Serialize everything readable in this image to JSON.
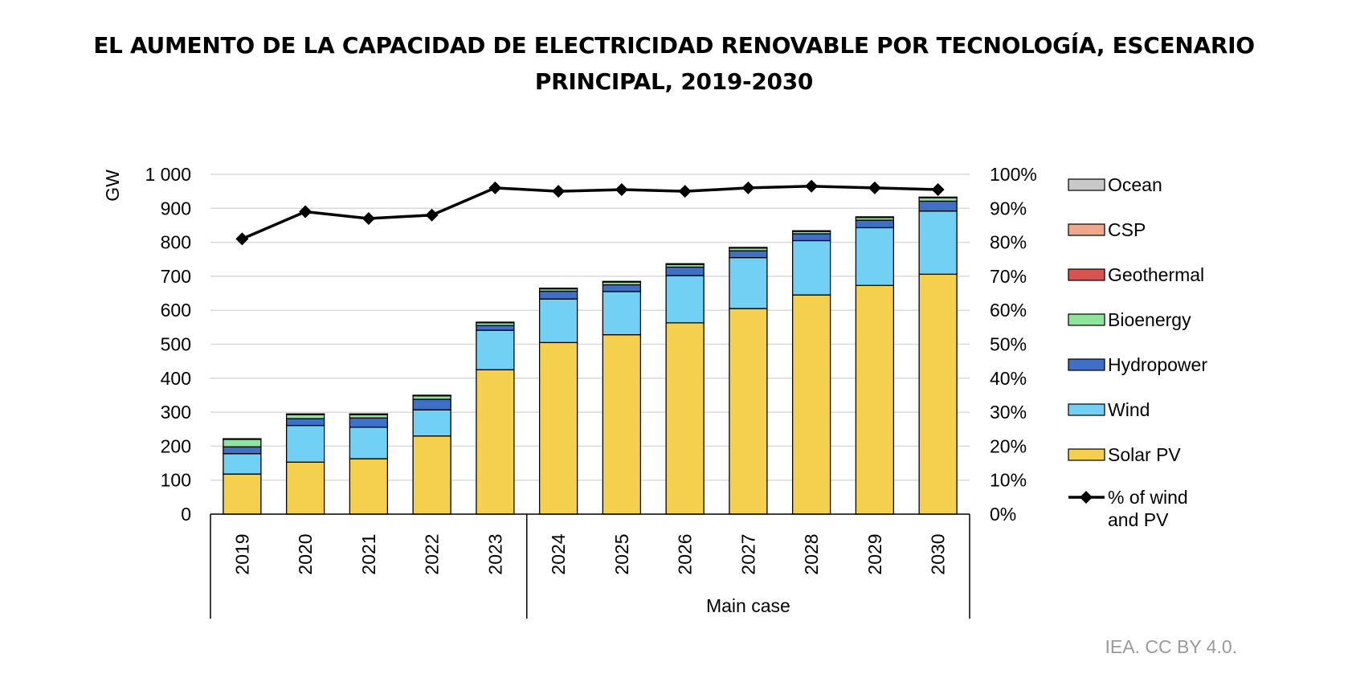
{
  "chart_data": {
    "type": "bar",
    "stacked": true,
    "title_lines": [
      "EL AUMENTO DE LA CAPACIDAD DE ELECTRICIDAD RENOVABLE POR TECNOLOGÍA, ESCENARIO",
      "PRINCIPAL, 2019-2030"
    ],
    "categories": [
      "2019",
      "2020",
      "2021",
      "2022",
      "2023",
      "2024",
      "2025",
      "2026",
      "2027",
      "2028",
      "2029",
      "2030"
    ],
    "group_label": "Main case",
    "ylabel": "GW",
    "ylim": [
      0,
      1000
    ],
    "yticks": [
      "0",
      "100",
      "200",
      "300",
      "400",
      "500",
      "600",
      "700",
      "800",
      "900",
      "1 000"
    ],
    "y2lim": [
      0,
      100
    ],
    "y2ticks": [
      "0%",
      "10%",
      "20%",
      "30%",
      "40%",
      "50%",
      "60%",
      "70%",
      "80%",
      "90%",
      "100%"
    ],
    "grid": true,
    "series": [
      {
        "name": "Solar PV",
        "color": "#f5d04f",
        "values": [
          118,
          153,
          163,
          230,
          425,
          505,
          528,
          563,
          605,
          645,
          673,
          706
        ]
      },
      {
        "name": "Wind",
        "color": "#72d0f5",
        "values": [
          60,
          108,
          93,
          77,
          116,
          128,
          127,
          139,
          150,
          160,
          170,
          186
        ]
      },
      {
        "name": "Hydropower",
        "color": "#3f70c8",
        "values": [
          20,
          20,
          27,
          31,
          14,
          23,
          20,
          25,
          20,
          20,
          22,
          29
        ]
      },
      {
        "name": "Bioenergy",
        "color": "#8ee49b",
        "values": [
          22,
          12,
          10,
          10,
          8,
          7,
          8,
          8,
          8,
          7,
          8,
          10
        ]
      },
      {
        "name": "Geothermal",
        "color": "#d9534f",
        "values": [
          1,
          1,
          1,
          1,
          1,
          1,
          1,
          1,
          1,
          1,
          1,
          1
        ]
      },
      {
        "name": "CSP",
        "color": "#f0a88c",
        "values": [
          1,
          1,
          1,
          1,
          1,
          1,
          1,
          1,
          1,
          1,
          1,
          1
        ]
      },
      {
        "name": "Ocean",
        "color": "#c8c8c8",
        "values": [
          0,
          0,
          0,
          0,
          0,
          0,
          0,
          0,
          0,
          0,
          0,
          0
        ]
      }
    ],
    "line_series": {
      "name_lines": [
        "% of wind",
        "and PV"
      ],
      "axis": "right",
      "color": "#000000",
      "values": [
        81,
        89,
        87,
        88,
        96,
        95,
        95.5,
        95,
        96,
        96.5,
        96,
        95.5
      ]
    },
    "legend": {
      "placement": "right"
    }
  },
  "credit": "IEA. CC BY 4.0."
}
